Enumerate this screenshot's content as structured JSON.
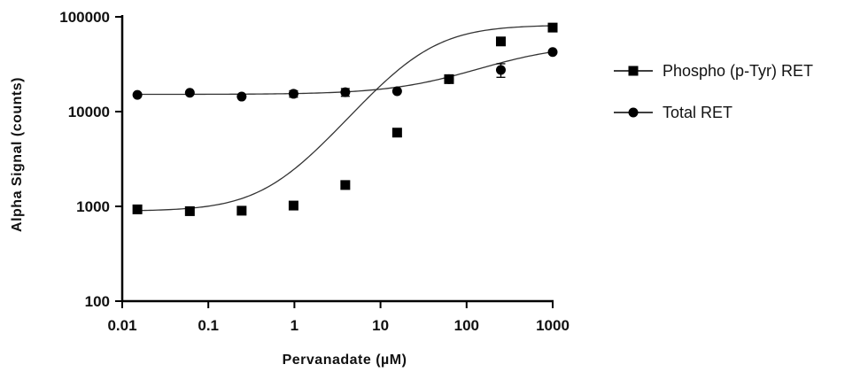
{
  "chart_data": {
    "type": "scatter",
    "xlabel": "Pervanadate (µM)",
    "ylabel": "Alpha Signal (counts)",
    "xscale": "log",
    "yscale": "log",
    "xlim": [
      0.01,
      1000
    ],
    "ylim": [
      100,
      100000
    ],
    "xticks": [
      0.01,
      0.1,
      1,
      10,
      100,
      1000
    ],
    "xtick_labels": [
      "0.01",
      "0.1",
      "1",
      "10",
      "100",
      "1000"
    ],
    "yticks": [
      100,
      1000,
      10000,
      100000
    ],
    "ytick_labels": [
      "100",
      "1000",
      "10000",
      "100000"
    ],
    "grid": false,
    "legend_position": "right",
    "x": [
      0.015,
      0.061,
      0.244,
      0.977,
      3.9,
      15.6,
      62.5,
      250,
      1000
    ],
    "series": [
      {
        "name": "Phospho (p-Tyr) RET",
        "marker": "square",
        "values": [
          930,
          890,
          900,
          1020,
          1680,
          6000,
          22000,
          55000,
          77000
        ],
        "errors": [
          0,
          0,
          0,
          0,
          0,
          0,
          0,
          5000,
          0
        ],
        "fit": {
          "bottom": 890,
          "top": 82000,
          "ec50": 30,
          "hill": 1.15
        }
      },
      {
        "name": "Total RET",
        "marker": "circle",
        "values": [
          15000,
          15800,
          14400,
          15400,
          16000,
          16400,
          22000,
          27500,
          42500
        ],
        "errors": [
          0,
          0,
          0,
          1200,
          1500,
          0,
          0,
          4500,
          0
        ],
        "fit": {
          "bottom": 15200,
          "top": 52000,
          "ec50": 280,
          "hill": 0.85
        }
      }
    ],
    "colors": {
      "marker": "#000000",
      "curve": "#333333"
    }
  }
}
